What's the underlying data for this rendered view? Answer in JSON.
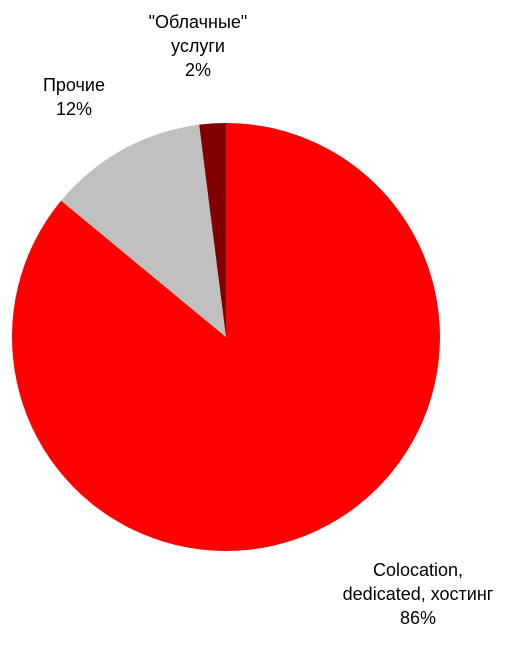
{
  "chart_data": {
    "type": "pie",
    "categories": [
      "Colocation,\ndedicated, хостинг",
      "Прочие",
      "\"Облачные\"\nуслуги"
    ],
    "values": [
      86,
      12,
      2
    ],
    "value_labels": [
      "86%",
      "12%",
      "2%"
    ],
    "colors": [
      "#ff0000",
      "#c0c0c0",
      "#800000"
    ]
  }
}
